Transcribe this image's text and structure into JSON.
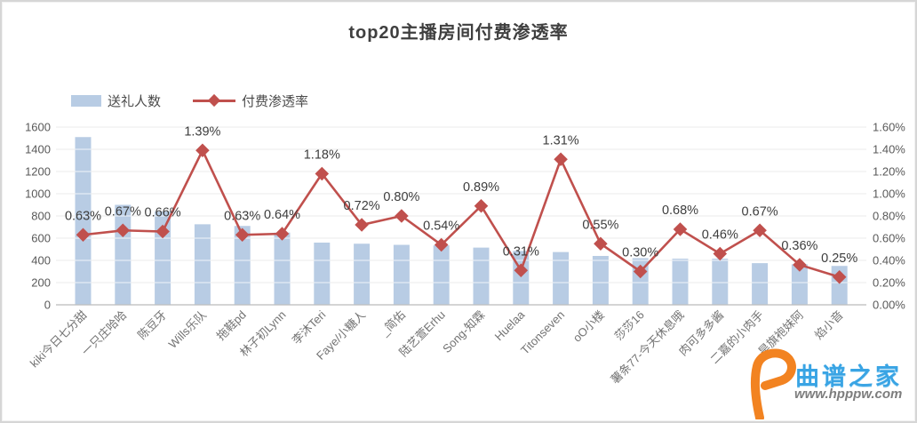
{
  "title": "top20主播房间付费渗透率",
  "legend": {
    "bar_label": "送礼人数",
    "line_label": "付费渗透率"
  },
  "watermark": {
    "brand": "曲谱之家",
    "url": "www.hpppw.com"
  },
  "chart_data": {
    "type": "bar",
    "subtype": "combo bar+line, dual axis",
    "title": "top20主播房间付费渗透率",
    "categories": [
      "kiki今日七分甜",
      "一只庄哈哈",
      "陈豆牙",
      "Wills乐队",
      "拖鞋pd",
      "林子初Lynn",
      "李沐Teri",
      "Faye/小糖人",
      "_简佑",
      "陆艺萱Erhu",
      "Song-知霖",
      "Huelaa",
      "Titonseven",
      "oO小楼",
      "莎莎16",
      "薯条77-今天休息哦",
      "肉可多多酱",
      "二嘉的小肉手",
      "旱旗袍妹阿",
      "焰小音"
    ],
    "series": [
      {
        "name": "送礼人数",
        "type": "bar",
        "axis": "left",
        "values": [
          1510,
          900,
          840,
          725,
          710,
          650,
          560,
          550,
          540,
          535,
          515,
          485,
          475,
          440,
          420,
          415,
          415,
          375,
          365,
          350
        ]
      },
      {
        "name": "付费渗透率",
        "type": "line",
        "axis": "right",
        "label_format": "percent2",
        "values": [
          0.63,
          0.67,
          0.66,
          1.39,
          0.63,
          0.64,
          1.18,
          0.72,
          0.8,
          0.54,
          0.89,
          0.31,
          1.31,
          0.55,
          0.3,
          0.68,
          0.46,
          0.67,
          0.36,
          0.25
        ]
      }
    ],
    "left_axis": {
      "min": 0,
      "max": 1600,
      "step": 200
    },
    "right_axis": {
      "min": 0,
      "max": 1.6,
      "step": 0.2,
      "format": "percent2"
    },
    "grid": true,
    "legend_position": "top-left",
    "colors": {
      "bar": "#b8cce4",
      "line": "#c0504d",
      "grid": "#dcdcdc",
      "axis_line": "#bfbfbf",
      "axis_text": "#595959",
      "xlabel_text": "#737373",
      "data_label_text": "#3d3d3d",
      "title_text": "#3f3f3f",
      "watermark_blue": "#39a4e4",
      "watermark_orange": "#f28321"
    }
  }
}
